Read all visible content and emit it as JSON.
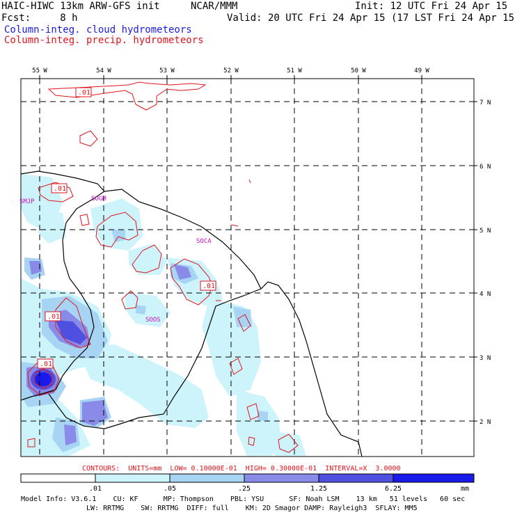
{
  "header": {
    "model": "HAIC-HIWC 13km ARW-GFS init",
    "org": "NCAR/MMM",
    "init": "Init: 12 UTC Fri 24 Apr 15",
    "fcst": "Fcst:     8 h",
    "valid": "Valid: 20 UTC Fri 24 Apr 15 (17 LST Fri 24 Apr 15)",
    "legend_cloud": "Column-integ. cloud hydrometeors",
    "legend_precip": "Column-integ. precip. hydrometeors",
    "cloud_color": "#1a1adf",
    "precip_color": "#e0141c"
  },
  "map": {
    "lon_labels": [
      "55 W",
      "54 W",
      "53 W",
      "52 W",
      "51 W",
      "50 W",
      "49 W"
    ],
    "lat_labels": [
      "7 N",
      "6 N",
      "5 N",
      "4 N",
      "3 N",
      "2 N"
    ],
    "stations": [
      "SMJP",
      "SOGM",
      "SOCA",
      "SOOS"
    ],
    "contour_labels": [
      ".01",
      ".01",
      ".01",
      ".01",
      ".01"
    ]
  },
  "footer": {
    "contours": "CONTOURS:  UNITS=mm  LOW= 0.10000E-01  HIGH= 0.30000E-01  INTERVAL=X  3.0000",
    "colorbar": {
      "labels": [
        ".01",
        ".05",
        ".25",
        "1.25",
        "6.25"
      ],
      "unit": "mm",
      "colors": [
        "#ffffff",
        "#cdf4fb",
        "#a8d4f4",
        "#8a8be8",
        "#5050e0",
        "#1a1aea"
      ]
    },
    "model_info_1": "Model Info: V3.6.1    CU: KF      MP: Thompson    PBL: YSU      SF: Noah LSM    13 km   51 levels   60 sec",
    "model_info_2": "LW: RRTMG    SW: RRTMG  DIFF: full    KM: 2D Smagor DAMP: Rayleigh3  SFLAY: MM5"
  }
}
